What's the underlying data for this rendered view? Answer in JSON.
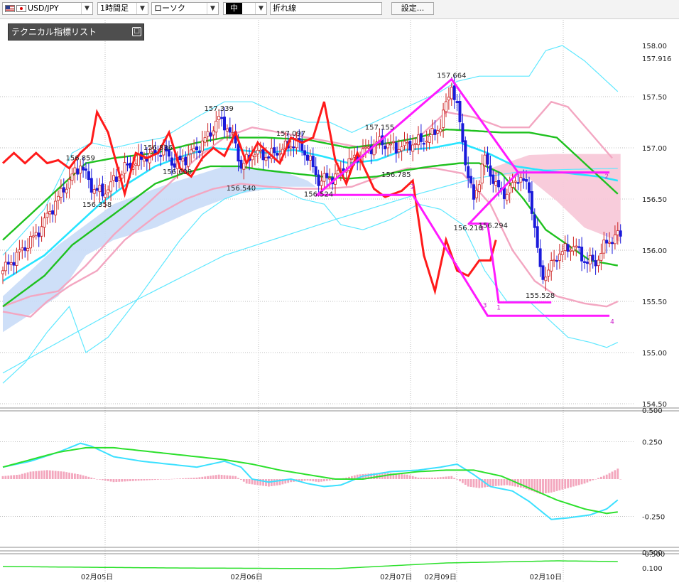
{
  "toolbar": {
    "symbol": "USD/JPY",
    "timeframe": "1時間足",
    "chart_type": "ローソク",
    "line_width": "中",
    "line_type": "折れ線",
    "settings_button": "設定..."
  },
  "indicator_panel": {
    "label": "テクニカル指標リスト",
    "toggle": "□"
  },
  "colors": {
    "candle_up": "#cc2222",
    "candle_down": "#1a1adb",
    "ema": "#ff1a1a",
    "ma_short": "#28e4ff",
    "ma_mid": "#1ec11e",
    "bb_outer": "#5fe8ff",
    "bb_mid": "#f3a6c1",
    "cloud_blue": "#c9dcf7",
    "cloud_pink": "#f8c9d9",
    "zigzag": "#ff1aff",
    "hist": "#f3a6bd",
    "osc_cyan": "#3be0ff",
    "osc_green": "#2ce02c"
  },
  "chart_data": {
    "type": "candlestick",
    "symbol": "USD/JPY",
    "timeframe": "1時間足",
    "price_axis": {
      "ylim": [
        154.5,
        158.0
      ],
      "ticks": [
        158.0,
        157.5,
        157.0,
        156.5,
        156.0,
        155.5,
        155.0,
        154.5
      ],
      "tick_labels": [
        "158.00",
        "157.50",
        "157.00",
        "156.50",
        "156.00",
        "155.50",
        "155.00",
        "154.50"
      ],
      "current_price": 157.916,
      "current_price_label": "157.916"
    },
    "date_labels": [
      {
        "label": "02月05日",
        "bar": 34
      },
      {
        "label": "02月06日",
        "bar": 88
      },
      {
        "label": "02月07日",
        "bar": 142
      },
      {
        "label": "02月09日",
        "bar": 158
      },
      {
        "label": "02月10日",
        "bar": 196
      }
    ],
    "annotations": [
      {
        "label": "156.859",
        "bar": 28,
        "price": 156.859,
        "pos": "above"
      },
      {
        "label": "156.358",
        "bar": 34,
        "price": 156.5,
        "pos": "below"
      },
      {
        "label": "156.836",
        "bar": 56,
        "price": 156.96,
        "pos": "above"
      },
      {
        "label": "156.609",
        "bar": 63,
        "price": 156.82,
        "pos": "below"
      },
      {
        "label": "157.339",
        "bar": 78,
        "price": 157.339,
        "pos": "above"
      },
      {
        "label": "156.540",
        "bar": 86,
        "price": 156.66,
        "pos": "below"
      },
      {
        "label": "157.097",
        "bar": 104,
        "price": 157.097,
        "pos": "above"
      },
      {
        "label": "156.524",
        "bar": 114,
        "price": 156.6,
        "pos": "below"
      },
      {
        "label": "157.155",
        "bar": 136,
        "price": 157.155,
        "pos": "above"
      },
      {
        "label": "156.785",
        "bar": 142,
        "price": 156.79,
        "pos": "below"
      },
      {
        "label": "157.664",
        "bar": 162,
        "price": 157.664,
        "pos": "above"
      },
      {
        "label": "156.210",
        "bar": 168,
        "price": 156.27,
        "pos": "below"
      },
      {
        "label": "156.294",
        "bar": 177,
        "price": 156.294,
        "pos": "below"
      },
      {
        "label": "155.528",
        "bar": 194,
        "price": 155.61,
        "pos": "below"
      }
    ],
    "zigzag_lines": [
      {
        "points": [
          [
            113,
            156.53
          ],
          [
            162,
            157.67
          ],
          [
            186,
            156.76
          ]
        ]
      },
      {
        "points": [
          [
            113,
            156.54
          ],
          [
            148,
            156.54
          ],
          [
            175,
            155.36
          ],
          [
            219,
            155.36
          ]
        ]
      },
      {
        "points": [
          [
            168,
            156.25
          ],
          [
            186,
            156.76
          ],
          [
            219,
            156.76
          ]
        ]
      },
      {
        "points": [
          [
            168,
            156.26
          ],
          [
            175,
            156.26
          ],
          [
            179,
            155.49
          ],
          [
            198,
            155.49
          ]
        ]
      }
    ],
    "zigzag_labels": [
      {
        "label": "2",
        "bar": 148,
        "price": 156.6
      },
      {
        "label": "3",
        "bar": 174,
        "price": 155.44
      },
      {
        "label": "1",
        "bar": 179,
        "price": 155.42
      },
      {
        "label": "4",
        "bar": 173,
        "price": 156.19
      },
      {
        "label": "2",
        "bar": 218,
        "price": 156.7
      },
      {
        "label": "4",
        "bar": 220,
        "price": 155.28
      }
    ],
    "oscillator": {
      "ylim": [
        -0.62,
        0.62
      ],
      "ticks": [
        0.25,
        -0.25,
        -0.5
      ],
      "tick_labels": [
        "0.250",
        "-0.250",
        "-0.500"
      ],
      "top_label": "0.500"
    },
    "bottom_panel": {
      "tick_labels": [
        "0.500",
        "0.100"
      ]
    }
  }
}
